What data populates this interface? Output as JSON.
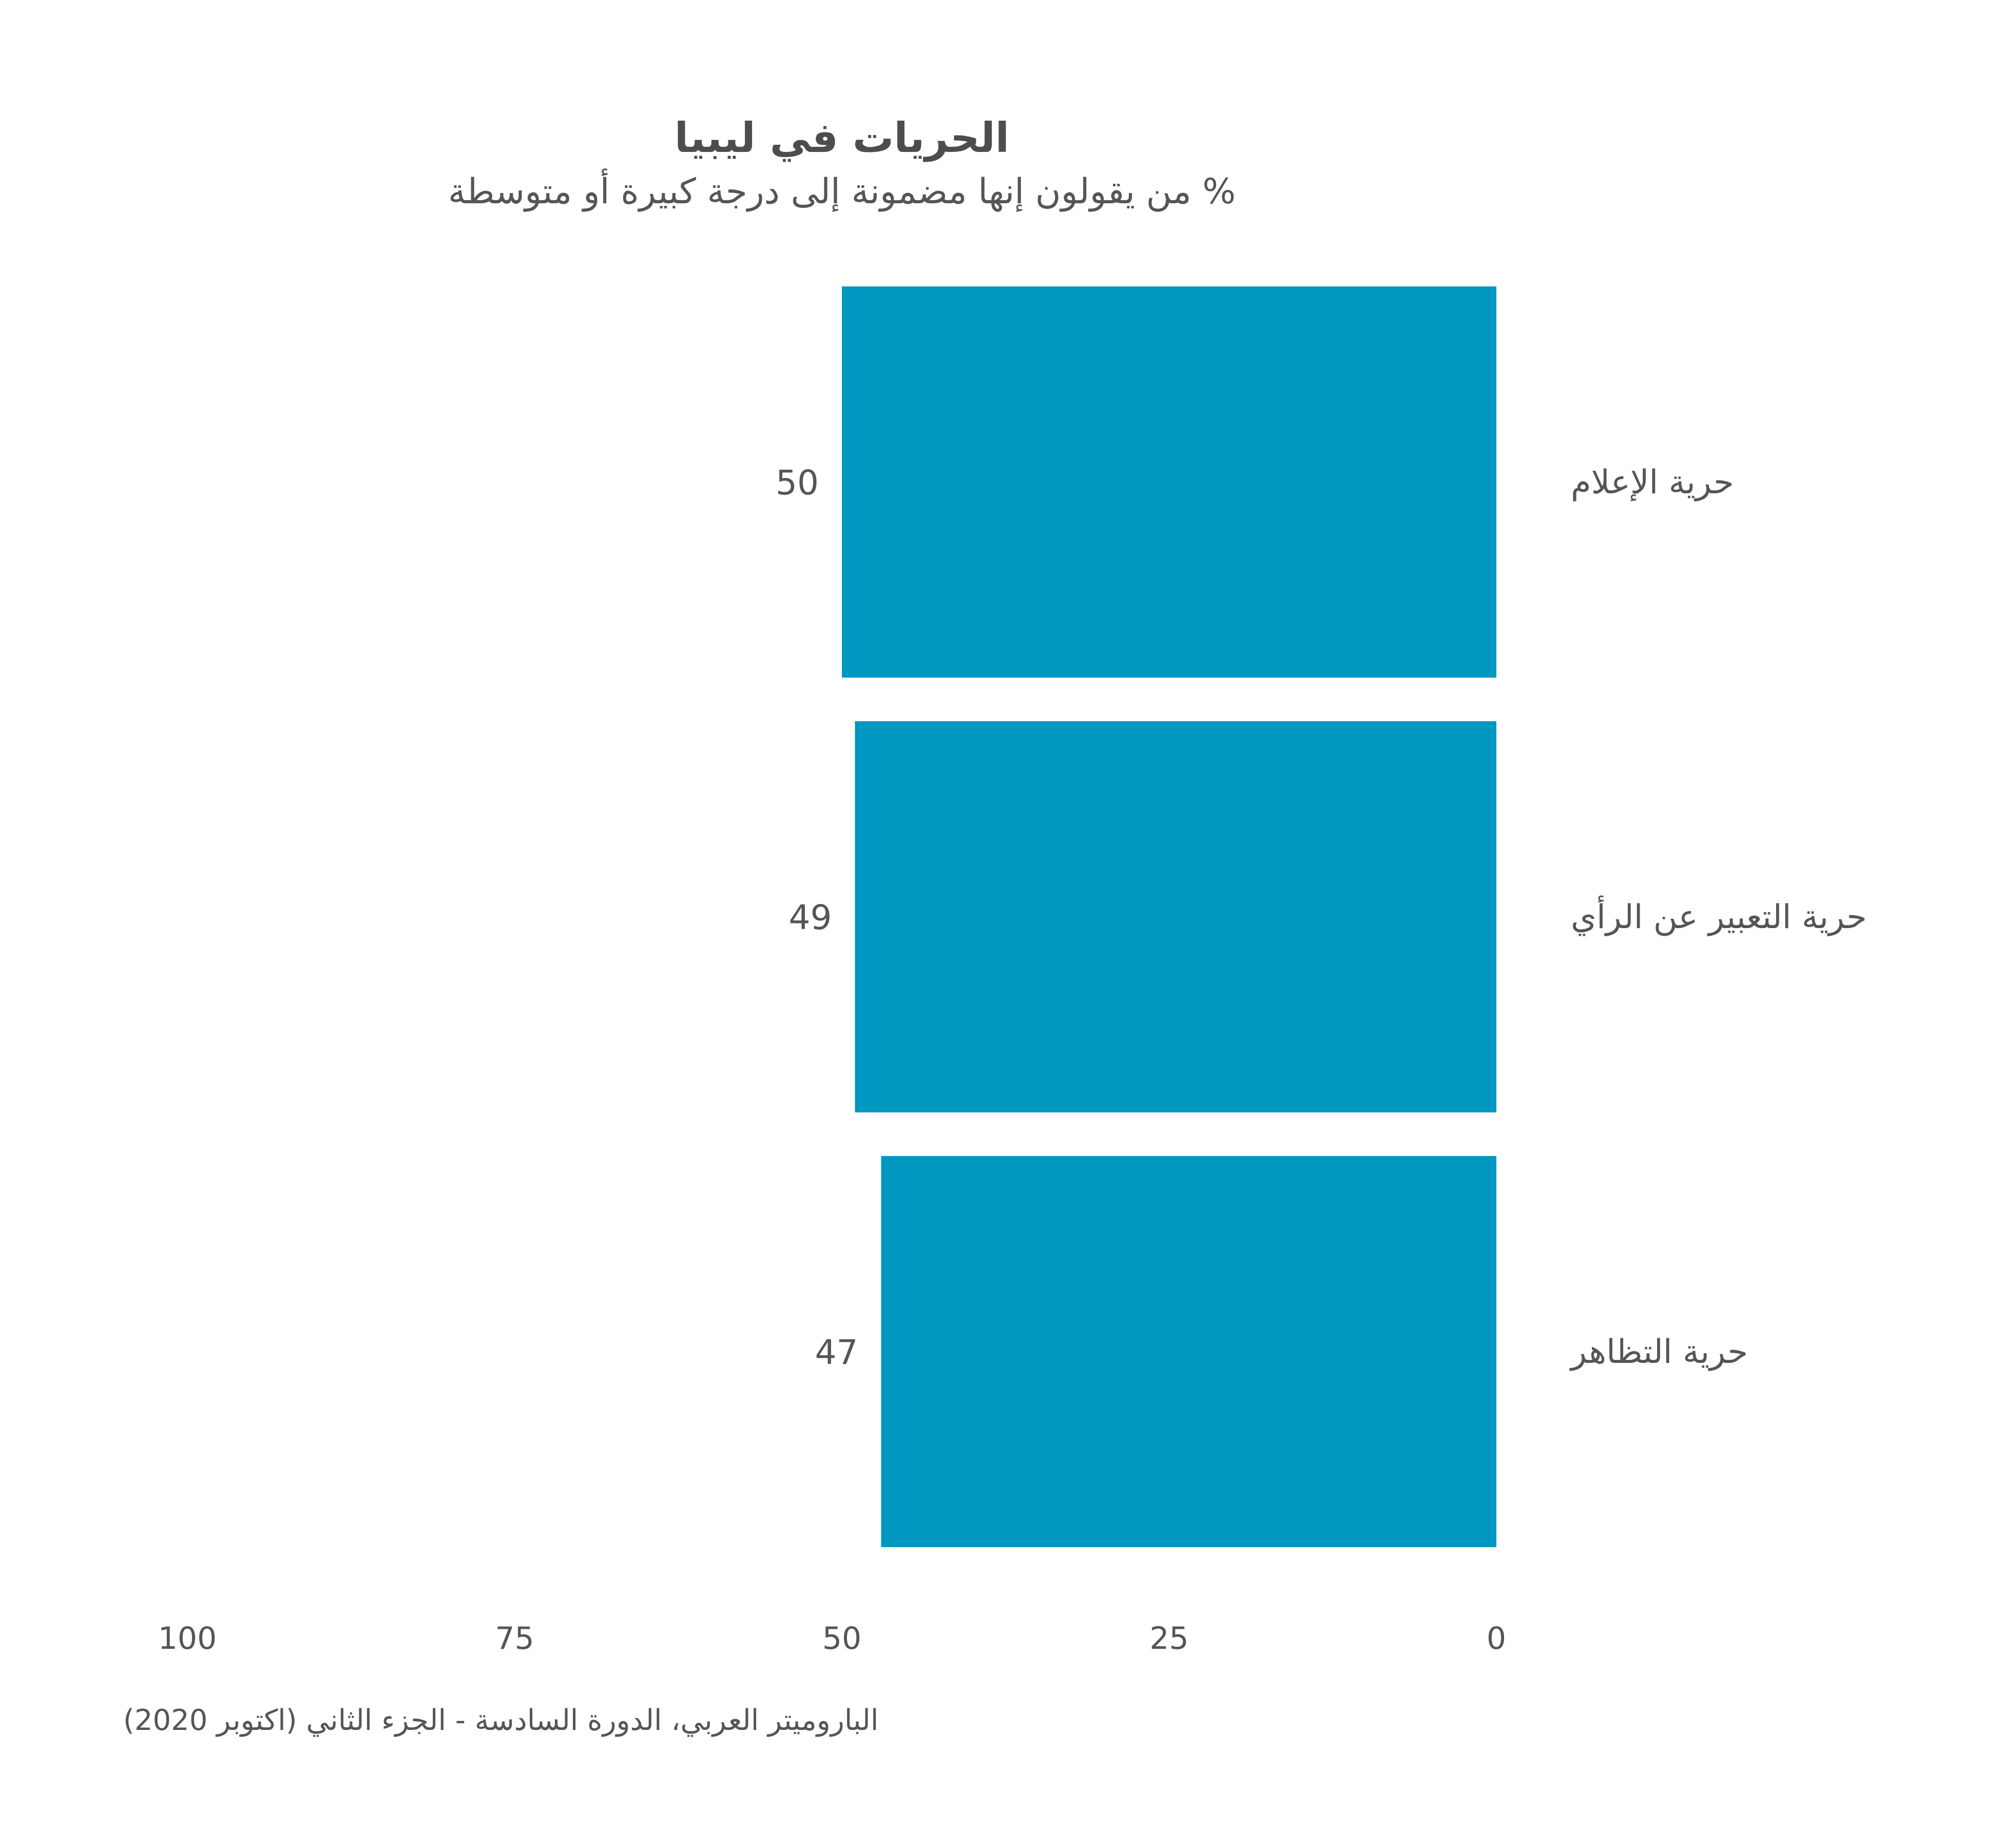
{
  "chart_data": {
    "type": "bar",
    "orientation": "horizontal",
    "direction": "right-to-left",
    "title": "الحريات في ليبيا",
    "subtitle": "% من يقولون إنها مضمونة إلى درجة كبيرة أو متوسطة",
    "categories": [
      "حرية الإعلام",
      "حرية التعبير عن الرأي",
      "حرية التظاهر"
    ],
    "values": [
      50,
      49,
      47
    ],
    "value_labels": [
      "50",
      "49",
      "47"
    ],
    "xlim": [
      0,
      100
    ],
    "x_ticks": [
      0,
      25,
      50,
      75,
      100
    ],
    "x_tick_labels": [
      "0",
      "25",
      "50",
      "75",
      "100"
    ],
    "grid": false,
    "bar_color": "#0097c1",
    "source": "الباروميتر العربي، الدورة السادسة - الجزء الثاني (اكتوبر 2020)"
  }
}
